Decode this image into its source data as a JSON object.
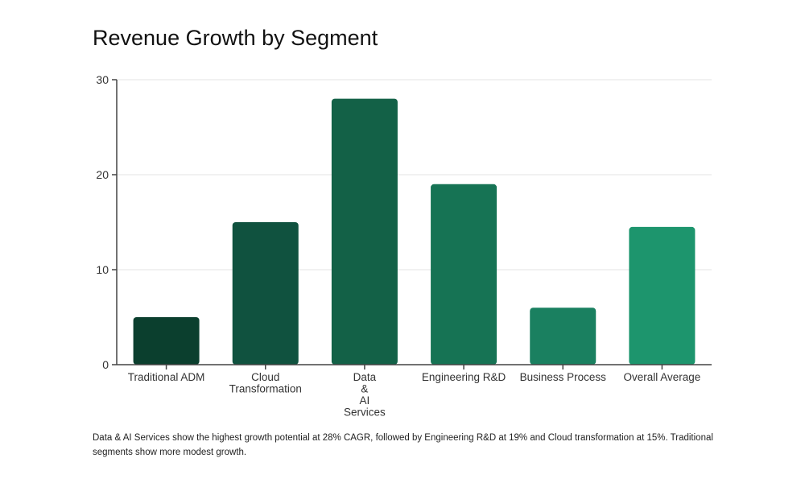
{
  "chart_data": {
    "type": "bar",
    "title": "Revenue Growth by Segment",
    "categories": [
      "Traditional ADM",
      "Cloud Transformation",
      "Data & AI Services",
      "Engineering R&D",
      "Business Process",
      "Overall Average"
    ],
    "category_label_lines": [
      [
        "Traditional ADM"
      ],
      [
        "Cloud",
        "Transformation"
      ],
      [
        "Data",
        "&",
        "AI",
        "Services"
      ],
      [
        "Engineering R&D"
      ],
      [
        "Business Process"
      ],
      [
        "Overall Average"
      ]
    ],
    "values": [
      5,
      15,
      28,
      19,
      6,
      14.5
    ],
    "colors": [
      "#0b3f2e",
      "#10523f",
      "#136147",
      "#167354",
      "#1a8060",
      "#1d956d"
    ],
    "ylim": [
      0,
      30
    ],
    "yticks": [
      0,
      10,
      20,
      30
    ],
    "grid": true,
    "xlabel": "",
    "ylabel": ""
  },
  "footnote": "Data & AI Services show the highest growth potential at 28% CAGR, followed by Engineering R&D at 19% and Cloud transformation at 15%. Traditional segments show more modest growth."
}
